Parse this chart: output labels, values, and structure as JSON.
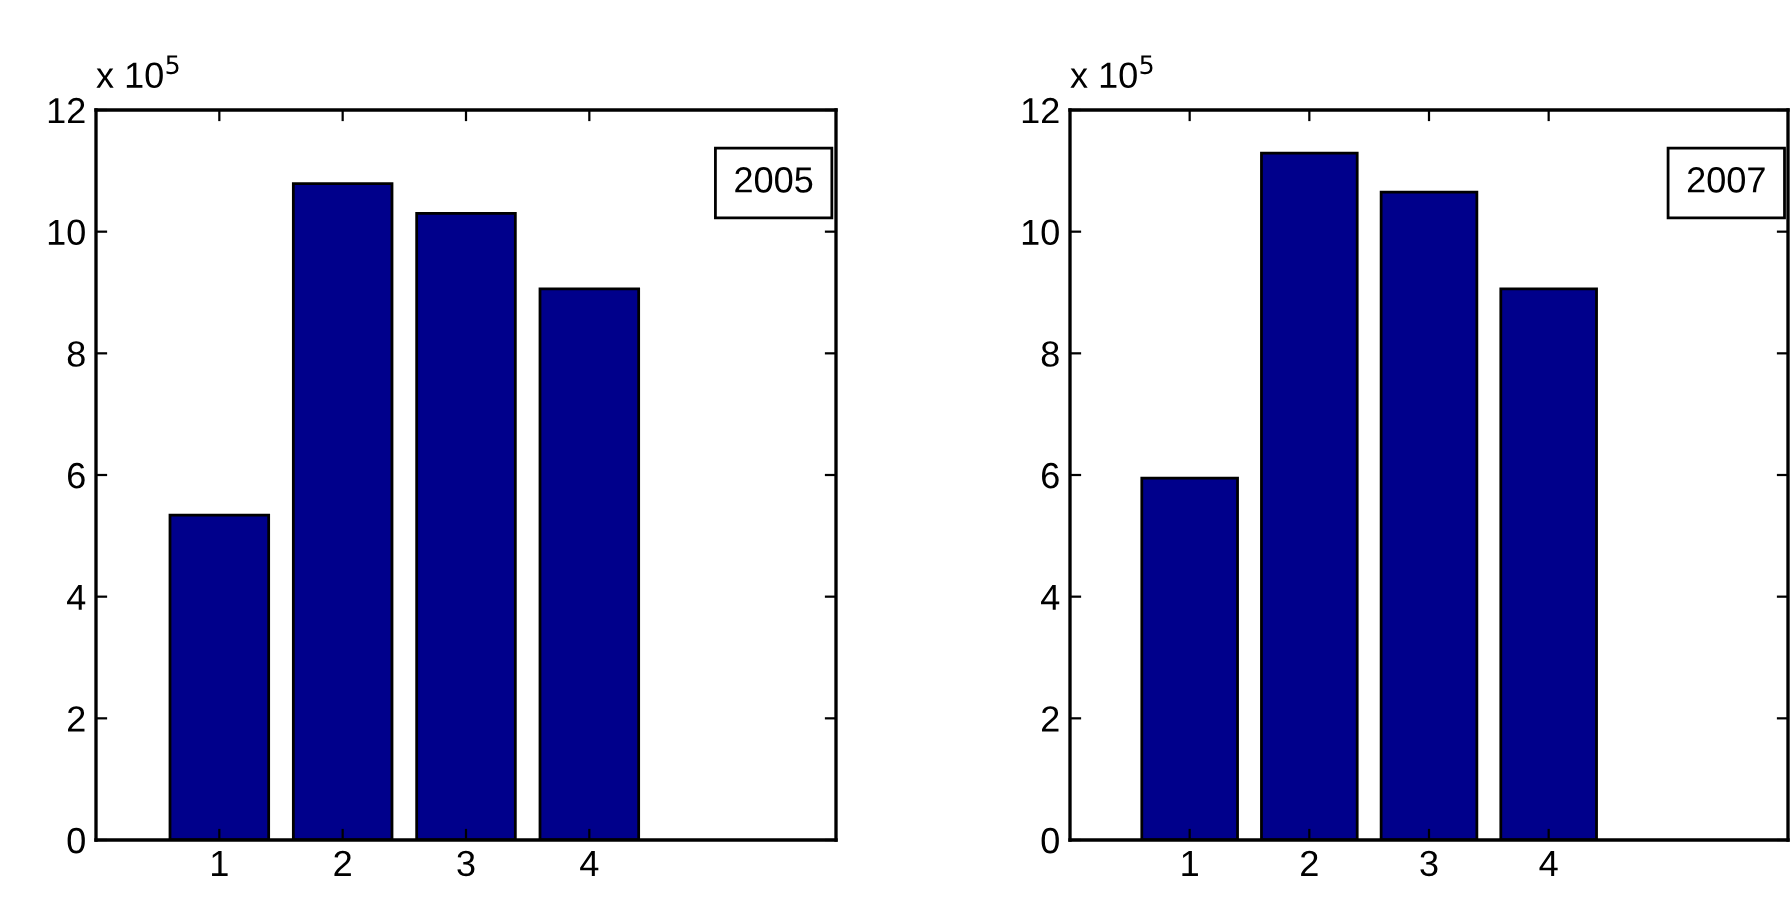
{
  "chart_data": [
    {
      "type": "bar",
      "x": [
        1,
        2,
        3,
        4
      ],
      "values": [
        5.34,
        10.79,
        10.3,
        9.06
      ],
      "color": "#00008b",
      "xlim": [
        0,
        6
      ],
      "xticks": [
        1,
        2,
        3,
        4
      ],
      "ylim": [
        0,
        12
      ],
      "yticks": [
        0,
        2,
        4,
        6,
        8,
        10,
        12
      ],
      "grid": false,
      "annotations": [
        "x 10$^{5}$",
        "2005"
      ]
    },
    {
      "type": "bar",
      "x": [
        1,
        2,
        3,
        4
      ],
      "values": [
        5.95,
        11.29,
        10.65,
        9.06
      ],
      "color": "#00008b",
      "xlim": [
        0,
        6
      ],
      "xticks": [
        1,
        2,
        3,
        4
      ],
      "ylim": [
        0,
        12
      ],
      "yticks": [
        0,
        2,
        4,
        6,
        8,
        10,
        12
      ],
      "grid": false,
      "annotations": [
        "x 10$^{5}$",
        "2007"
      ]
    }
  ]
}
